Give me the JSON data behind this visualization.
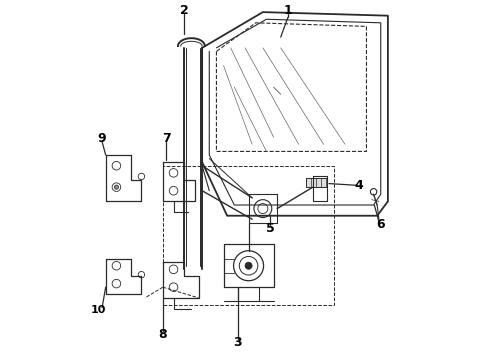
{
  "bg_color": "#ffffff",
  "line_color": "#2a2a2a",
  "label_color": "#000000",
  "fig_width": 4.9,
  "fig_height": 3.6,
  "dpi": 100,
  "labels": {
    "1": [
      0.62,
      0.97,
      0.6,
      0.88
    ],
    "2": [
      0.33,
      0.97,
      0.33,
      0.91
    ],
    "3": [
      0.48,
      0.05,
      0.48,
      0.2
    ],
    "4": [
      0.82,
      0.48,
      0.72,
      0.48
    ],
    "5": [
      0.57,
      0.37,
      0.57,
      0.43
    ],
    "6": [
      0.88,
      0.38,
      0.86,
      0.44
    ],
    "7": [
      0.28,
      0.6,
      0.28,
      0.54
    ],
    "8": [
      0.27,
      0.07,
      0.27,
      0.17
    ],
    "9": [
      0.1,
      0.6,
      0.13,
      0.56
    ],
    "10": [
      0.11,
      0.14,
      0.13,
      0.2
    ]
  }
}
